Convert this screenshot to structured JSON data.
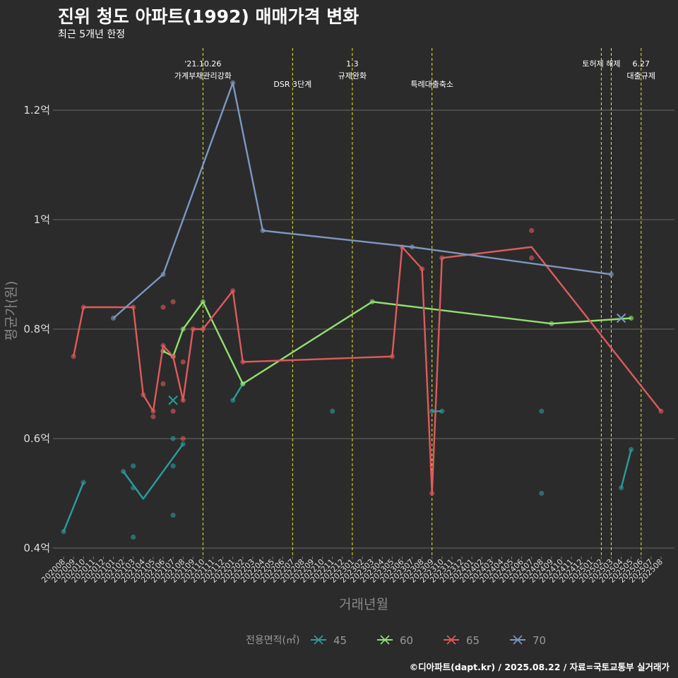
{
  "chart_data": {
    "type": "line",
    "title": "진위 청도 아파트(1992) 매매가격 변화",
    "subtitle": "최근 5개년 한정",
    "xlabel": "거래년월",
    "ylabel": "평균가(원)",
    "caption": "©디아파트(dapt.kr) / 2025.08.22 / 자료=국토교통부 실거래가",
    "x_categories": [
      "202008",
      "202009",
      "202010",
      "202011",
      "202012",
      "202101",
      "202102",
      "202103",
      "202104",
      "202105",
      "202106",
      "202107",
      "202108",
      "202109",
      "202110",
      "202111",
      "202112",
      "202201",
      "202202",
      "202203",
      "202204",
      "202205",
      "202206",
      "202207",
      "202208",
      "202209",
      "202210",
      "202211",
      "202212",
      "202301",
      "202302",
      "202303",
      "202304",
      "202305",
      "202306",
      "202307",
      "202308",
      "202309",
      "202310",
      "202311",
      "202312",
      "202401",
      "202402",
      "202403",
      "202404",
      "202405",
      "202406",
      "202407",
      "202408",
      "202409",
      "202410",
      "202411",
      "202412",
      "202501",
      "202502",
      "202503",
      "202504",
      "202505",
      "202506",
      "202507",
      "202508"
    ],
    "y_ticks": [
      {
        "value": 0.4,
        "label": "0.4억"
      },
      {
        "value": 0.6,
        "label": "0.6억"
      },
      {
        "value": 0.8,
        "label": "0.8억"
      },
      {
        "value": 1.0,
        "label": "1억"
      },
      {
        "value": 1.2,
        "label": "1.2억"
      }
    ],
    "ylim": [
      0.385,
      1.31
    ],
    "legend_title": "전용면적(㎡)",
    "legend_position": "bottom",
    "series": [
      {
        "name": "45",
        "color": "#2a9d9b",
        "line": [
          [
            "202008",
            0.43
          ],
          [
            "202010",
            0.52
          ],
          null,
          [
            "202102",
            0.54
          ],
          [
            "202104",
            0.49
          ],
          [
            "202108",
            0.59
          ],
          null,
          [
            "202201",
            0.67
          ],
          [
            "202202",
            0.7
          ],
          null,
          [
            "202309",
            0.65
          ],
          [
            "202310",
            0.65
          ],
          null,
          [
            "202504",
            0.51
          ],
          [
            "202505",
            0.58
          ]
        ],
        "points": [
          [
            "202008",
            0.43
          ],
          [
            "202010",
            0.52
          ],
          [
            "202102",
            0.54
          ],
          [
            "202103",
            0.55
          ],
          [
            "202103",
            0.51
          ],
          [
            "202103",
            0.42
          ],
          [
            "202107",
            0.6
          ],
          [
            "202107",
            0.55
          ],
          [
            "202107",
            0.46
          ],
          [
            "202108",
            0.59
          ],
          [
            "202201",
            0.67
          ],
          [
            "202202",
            0.7
          ],
          [
            "202211",
            0.65
          ],
          [
            "202309",
            0.65
          ],
          [
            "202310",
            0.65
          ],
          [
            "202408",
            0.65
          ],
          [
            "202408",
            0.5
          ],
          [
            "202504",
            0.51
          ],
          [
            "202505",
            0.58
          ]
        ],
        "markers_x": [
          [
            "202107",
            0.67
          ]
        ]
      },
      {
        "name": "60",
        "color": "#90e070",
        "line": [
          [
            "202106",
            0.76
          ],
          [
            "202107",
            0.75
          ],
          [
            "202108",
            0.8
          ],
          [
            "202110",
            0.85
          ],
          [
            "202202",
            0.7
          ],
          [
            "202303",
            0.85
          ],
          [
            "202409",
            0.81
          ],
          [
            "202505",
            0.82
          ]
        ],
        "points": [
          [
            "202106",
            0.76
          ],
          [
            "202107",
            0.75
          ],
          [
            "202108",
            0.8
          ],
          [
            "202110",
            0.85
          ],
          [
            "202202",
            0.7
          ],
          [
            "202303",
            0.85
          ],
          [
            "202409",
            0.81
          ],
          [
            "202505",
            0.82
          ]
        ],
        "markers_x": []
      },
      {
        "name": "65",
        "color": "#e05a5a",
        "line": [
          [
            "202009",
            0.75
          ],
          [
            "202010",
            0.84
          ],
          [
            "202103",
            0.84
          ],
          [
            "202104",
            0.68
          ],
          [
            "202105",
            0.65
          ],
          [
            "202106",
            0.77
          ],
          [
            "202107",
            0.75
          ],
          [
            "202108",
            0.67
          ],
          [
            "202109",
            0.8
          ],
          [
            "202110",
            0.8
          ],
          [
            "202201",
            0.87
          ],
          [
            "202202",
            0.74
          ],
          [
            "202305",
            0.75
          ],
          [
            "202306",
            0.95
          ],
          [
            "202308",
            0.91
          ],
          [
            "202309",
            0.5
          ],
          [
            "202310",
            0.93
          ],
          [
            "202407",
            0.95
          ],
          [
            "202508",
            0.65
          ]
        ],
        "points": [
          [
            "202009",
            0.75
          ],
          [
            "202010",
            0.84
          ],
          [
            "202103",
            0.84
          ],
          [
            "202104",
            0.68
          ],
          [
            "202105",
            0.64
          ],
          [
            "202105",
            0.65
          ],
          [
            "202106",
            0.84
          ],
          [
            "202106",
            0.77
          ],
          [
            "202106",
            0.7
          ],
          [
            "202107",
            0.85
          ],
          [
            "202107",
            0.75
          ],
          [
            "202107",
            0.65
          ],
          [
            "202108",
            0.74
          ],
          [
            "202108",
            0.67
          ],
          [
            "202108",
            0.6
          ],
          [
            "202109",
            0.8
          ],
          [
            "202110",
            0.8
          ],
          [
            "202201",
            0.87
          ],
          [
            "202202",
            0.74
          ],
          [
            "202305",
            0.75
          ],
          [
            "202306",
            0.95
          ],
          [
            "202308",
            0.91
          ],
          [
            "202309",
            0.5
          ],
          [
            "202310",
            0.93
          ],
          [
            "202407",
            0.98
          ],
          [
            "202407",
            0.93
          ],
          [
            "202508",
            0.65
          ]
        ],
        "markers_x": []
      },
      {
        "name": "70",
        "color": "#7d97c0",
        "line": [
          [
            "202101",
            0.82
          ],
          [
            "202106",
            0.9
          ],
          [
            "202201",
            1.25
          ],
          [
            "202204",
            0.98
          ],
          [
            "202307",
            0.95
          ],
          [
            "202503",
            0.9
          ]
        ],
        "points": [
          [
            "202101",
            0.82
          ],
          [
            "202106",
            0.9
          ],
          [
            "202201",
            1.25
          ],
          [
            "202204",
            0.98
          ],
          [
            "202307",
            0.95
          ],
          [
            "202503",
            0.9
          ]
        ],
        "markers_x": [
          [
            "202504",
            0.82
          ]
        ]
      }
    ],
    "annotations": [
      {
        "x": "202110",
        "lines": [
          "'21.10.26",
          "가계부채관리강화"
        ],
        "level": 0
      },
      {
        "x": "202207",
        "lines": [
          "DSR 3단계"
        ],
        "level": 1
      },
      {
        "x": "202301",
        "lines": [
          "1.3",
          "규제완화"
        ],
        "level": 0
      },
      {
        "x": "202309",
        "lines": [
          "특례대출축소"
        ],
        "level": 1
      },
      {
        "x": "202502",
        "lines": [
          "토허제 해제"
        ],
        "level": 0
      },
      {
        "x": "202503",
        "lines": [],
        "level": 0
      },
      {
        "x": "202506",
        "lines": [
          "6.27",
          "대출규제"
        ],
        "level": 0
      }
    ]
  }
}
